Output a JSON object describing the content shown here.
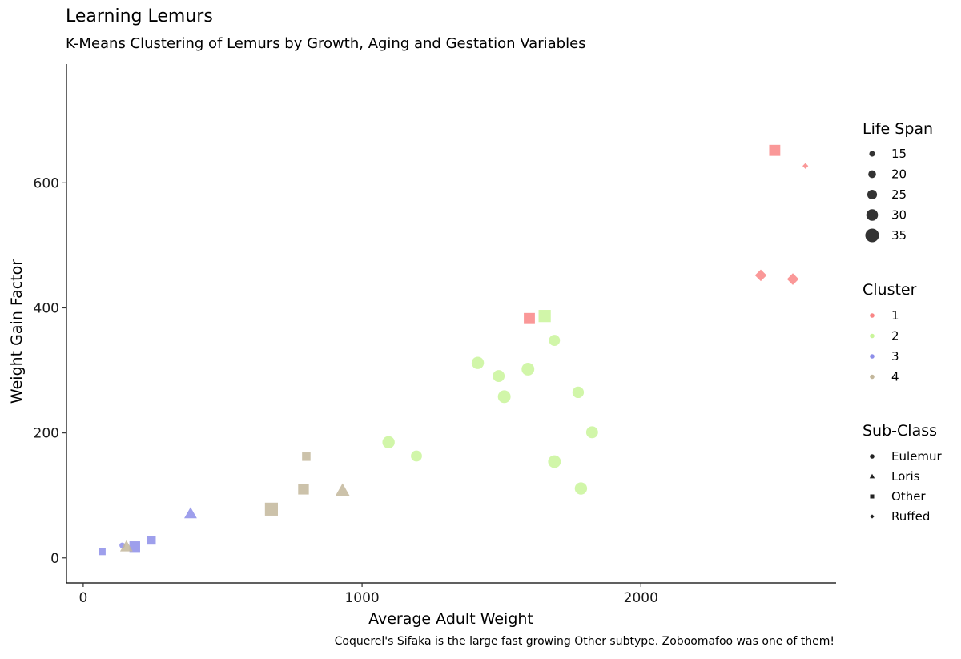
{
  "chart_data": {
    "type": "scatter",
    "title": "Learning Lemurs",
    "subtitle": "K-Means Clustering of Lemurs by Growth, Aging and Gestation Variables",
    "xlabel": "Average Adult Weight",
    "ylabel": "Weight Gain Factor",
    "caption": "Coquerel's Sifaka is the large fast growing Other subtype. Zoboomafoo was one of them!",
    "xlim": [
      -60,
      2700
    ],
    "ylim": [
      -40,
      790
    ],
    "x_ticks": [
      0,
      1000,
      2000
    ],
    "y_ticks": [
      0,
      200,
      400,
      600
    ],
    "grid": false,
    "legend_position": "right",
    "cluster_colors": {
      "1": "#f98686",
      "2": "#c9f59a",
      "3": "#8d8ee9",
      "4": "#c3b79b"
    },
    "legends": {
      "life_span": {
        "title": "Life Span",
        "values": [
          15,
          20,
          25,
          30,
          35
        ]
      },
      "cluster": {
        "title": "Cluster",
        "values": [
          "1",
          "2",
          "3",
          "4"
        ]
      },
      "subclass": {
        "title": "Sub-Class",
        "values": [
          "Eulemur",
          "Loris",
          "Other",
          "Ruffed"
        ]
      }
    },
    "points": [
      {
        "x": 2480,
        "y": 652,
        "cluster": "1",
        "subclass": "Other",
        "life_span": 30
      },
      {
        "x": 2590,
        "y": 627,
        "cluster": "1",
        "subclass": "Ruffed",
        "life_span": 15
      },
      {
        "x": 2430,
        "y": 452,
        "cluster": "1",
        "subclass": "Ruffed",
        "life_span": 30
      },
      {
        "x": 2545,
        "y": 446,
        "cluster": "1",
        "subclass": "Ruffed",
        "life_span": 30
      },
      {
        "x": 1600,
        "y": 383,
        "cluster": "1",
        "subclass": "Other",
        "life_span": 30
      },
      {
        "x": 1655,
        "y": 387,
        "cluster": "2",
        "subclass": "Other",
        "life_span": 33
      },
      {
        "x": 1690,
        "y": 348,
        "cluster": "2",
        "subclass": "Eulemur",
        "life_span": 27
      },
      {
        "x": 1415,
        "y": 312,
        "cluster": "2",
        "subclass": "Eulemur",
        "life_span": 30
      },
      {
        "x": 1490,
        "y": 291,
        "cluster": "2",
        "subclass": "Eulemur",
        "life_span": 29
      },
      {
        "x": 1595,
        "y": 302,
        "cluster": "2",
        "subclass": "Eulemur",
        "life_span": 31
      },
      {
        "x": 1510,
        "y": 258,
        "cluster": "2",
        "subclass": "Eulemur",
        "life_span": 31
      },
      {
        "x": 1775,
        "y": 265,
        "cluster": "2",
        "subclass": "Eulemur",
        "life_span": 28
      },
      {
        "x": 1095,
        "y": 185,
        "cluster": "2",
        "subclass": "Eulemur",
        "life_span": 30
      },
      {
        "x": 1195,
        "y": 163,
        "cluster": "2",
        "subclass": "Eulemur",
        "life_span": 27
      },
      {
        "x": 1825,
        "y": 201,
        "cluster": "2",
        "subclass": "Eulemur",
        "life_span": 29
      },
      {
        "x": 1690,
        "y": 154,
        "cluster": "2",
        "subclass": "Eulemur",
        "life_span": 31
      },
      {
        "x": 1785,
        "y": 111,
        "cluster": "2",
        "subclass": "Eulemur",
        "life_span": 30
      },
      {
        "x": 385,
        "y": 71,
        "cluster": "3",
        "subclass": "Loris",
        "life_span": 27
      },
      {
        "x": 245,
        "y": 28,
        "cluster": "3",
        "subclass": "Other",
        "life_span": 23
      },
      {
        "x": 185,
        "y": 18,
        "cluster": "3",
        "subclass": "Other",
        "life_span": 29
      },
      {
        "x": 140,
        "y": 20,
        "cluster": "3",
        "subclass": "Eulemur",
        "life_span": 14
      },
      {
        "x": 68,
        "y": 10,
        "cluster": "3",
        "subclass": "Other",
        "life_span": 19
      },
      {
        "x": 155,
        "y": 18,
        "cluster": "4",
        "subclass": "Loris",
        "life_span": 27
      },
      {
        "x": 800,
        "y": 162,
        "cluster": "4",
        "subclass": "Other",
        "life_span": 23
      },
      {
        "x": 790,
        "y": 110,
        "cluster": "4",
        "subclass": "Other",
        "life_span": 29
      },
      {
        "x": 930,
        "y": 108,
        "cluster": "4",
        "subclass": "Loris",
        "life_span": 30
      },
      {
        "x": 675,
        "y": 78,
        "cluster": "4",
        "subclass": "Other",
        "life_span": 35
      }
    ]
  }
}
